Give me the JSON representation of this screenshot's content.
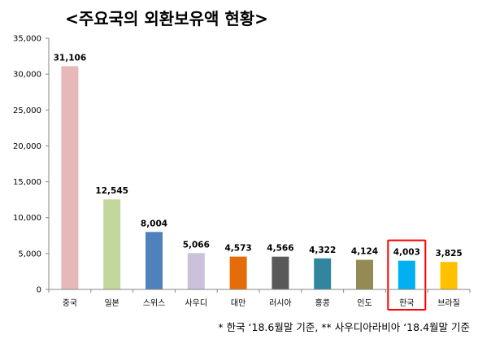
{
  "chart_data": {
    "type": "bar",
    "title": "<주요국의 외환보유액 현황>",
    "categories": [
      "중국",
      "일본",
      "스위스",
      "사우디",
      "대만",
      "러시아",
      "홍콩",
      "인도",
      "한국",
      "브라질"
    ],
    "values": [
      31106,
      12545,
      8004,
      5066,
      4573,
      4566,
      4322,
      4124,
      4003,
      3825
    ],
    "value_labels": [
      "31,106",
      "12,545",
      "8,004",
      "5,066",
      "4,573",
      "4,566",
      "4,322",
      "4,124",
      "4,003",
      "3,825"
    ],
    "colors": [
      "#e6b9b8",
      "#c3d69b",
      "#4f81bd",
      "#ccc1da",
      "#e46c0a",
      "#595959",
      "#31859c",
      "#948a54",
      "#00b0f0",
      "#ffc000"
    ],
    "y_ticks": [
      "0",
      "5,000",
      "10,000",
      "15,000",
      "20,000",
      "25,000",
      "30,000",
      "35,000"
    ],
    "ylim": [
      0,
      35000
    ],
    "highlight_category": "한국",
    "highlight_color": "#ff0000",
    "xlabel": "",
    "ylabel": "",
    "grid": false,
    "legend": "none",
    "footnote": "*  한국 ‘18.6월말  기준,   **  사우디아라비아  ‘18.4월말  기준"
  }
}
